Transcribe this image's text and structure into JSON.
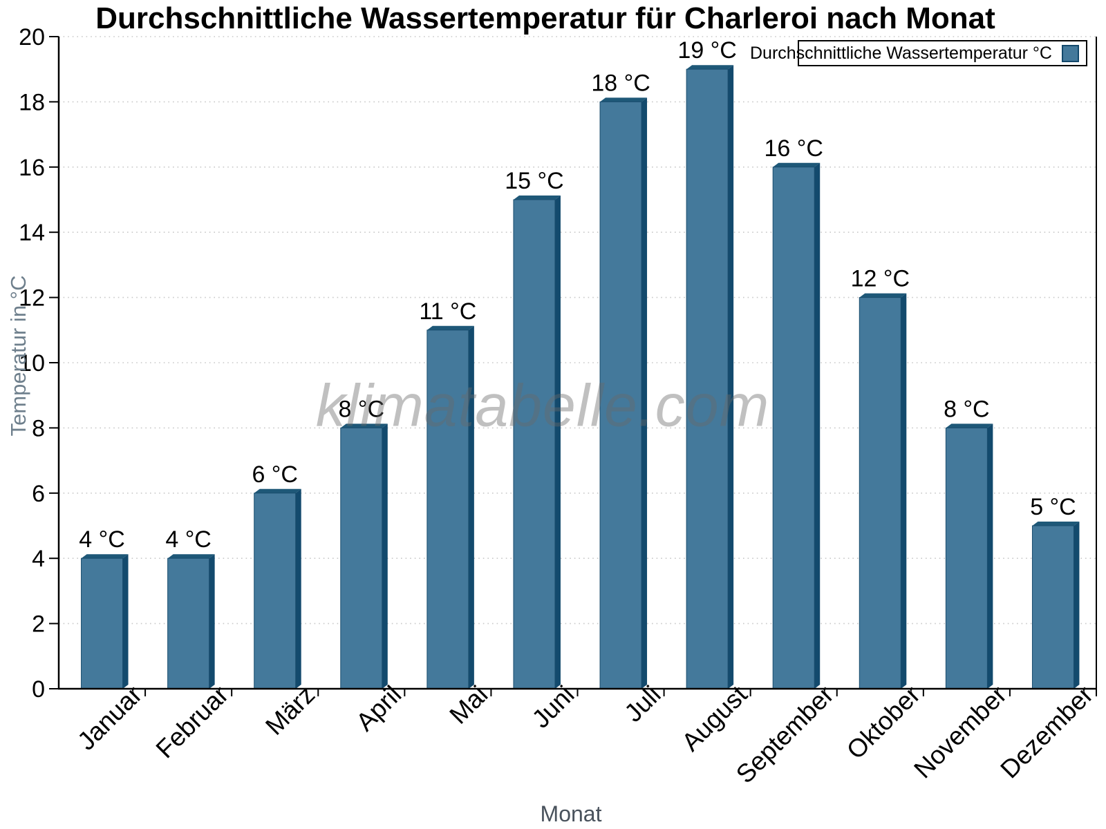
{
  "watermark": "klimatabelle.com",
  "chart_data": {
    "type": "bar",
    "title": "Durchschnittliche Wassertemperatur für Charleroi nach Monat",
    "categories": [
      "Januar",
      "Februar",
      "März",
      "April",
      "Mai",
      "Juni",
      "Juli",
      "August",
      "September",
      "Oktober",
      "November",
      "Dezember"
    ],
    "series": [
      {
        "name": "Durchschnittliche Wassertemperatur °C",
        "values": [
          4,
          4,
          6,
          8,
          11,
          15,
          18,
          19,
          16,
          12,
          8,
          5
        ]
      }
    ],
    "value_labels": [
      "4 °C",
      "4 °C",
      "6 °C",
      "8 °C",
      "11 °C",
      "15 °C",
      "18 °C",
      "19 °C",
      "16 °C",
      "12 °C",
      "8 °C",
      "5 °C"
    ],
    "xlabel": "Monat",
    "ylabel": "Temperatur in °C",
    "ylim": [
      0,
      20
    ],
    "ytick_step": 2,
    "grid": "horizontal-dotted",
    "legend_position": "top-right-inside",
    "bar_style": "3d-bevel",
    "colors": {
      "bar_front": "#44799b",
      "bar_side": "#134a6d",
      "bar_top": "#1e5878",
      "bar_outline": "#1a4d6e",
      "gridline": "#c8c8c8",
      "axis": "#000000",
      "y_axis_title_text": "#6e7f8c",
      "x_axis_title_text": "#49525c",
      "watermark_text": "#a9a9a9"
    }
  }
}
